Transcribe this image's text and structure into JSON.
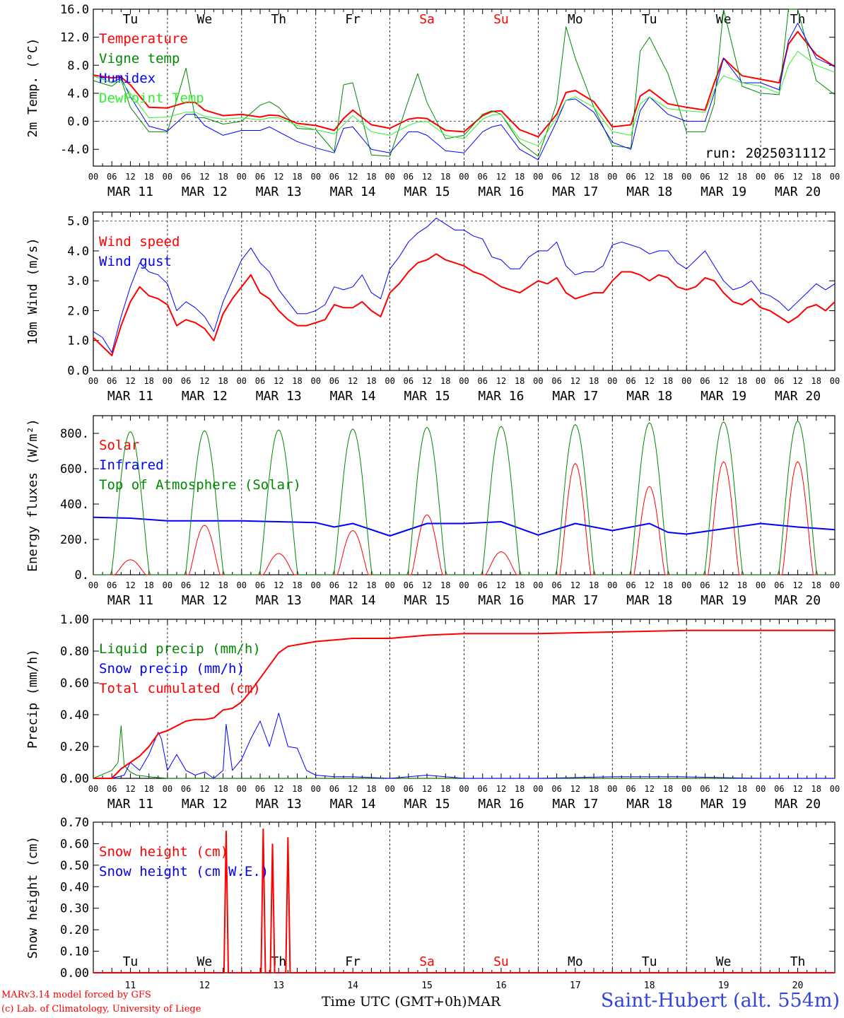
{
  "x_ticks": [
    "00",
    "06",
    "12",
    "18"
  ],
  "dates": [
    "MAR 11",
    "MAR 12",
    "MAR 13",
    "MAR 14",
    "MAR 15",
    "MAR 16",
    "MAR 17",
    "MAR 18",
    "MAR 19",
    "MAR 20"
  ],
  "weekdays": [
    "Tu",
    "We",
    "Th",
    "Fr",
    "Sa",
    "Su",
    "Mo",
    "Tu",
    "We",
    "Th"
  ],
  "weekday_colors": [
    "#000000",
    "#000000",
    "#000000",
    "#000000",
    "#ff0000",
    "#ff0000",
    "#000000",
    "#000000",
    "#000000",
    "#000000"
  ],
  "bottom_day_numbers": [
    "11",
    "12",
    "13",
    "14",
    "15",
    "16",
    "17",
    "18",
    "19",
    "20"
  ],
  "footer": {
    "model": "MARv3.14 model forced by GFS",
    "credit": "(c) Lab. of Climatology, University of Liege",
    "time_label": "Time UTC (GMT+0h)",
    "month": "MAR",
    "station": "Saint-Hubert (alt. 554m)"
  },
  "chart_data": [
    {
      "type": "line",
      "ylabel": "2m Temp. (°C)",
      "ylim": [
        -6.4,
        16.0
      ],
      "yticks": [
        "-4.0",
        "0.0",
        "4.0",
        "8.0",
        "12.0",
        "16.0"
      ],
      "ytick_values": [
        -4,
        0,
        4,
        8,
        12,
        16
      ],
      "reference_lines": [
        0
      ],
      "annotation": "run: 2025031112",
      "show_weekdays": true,
      "x_hours": [
        0,
        6,
        9,
        12,
        18,
        24,
        30,
        33,
        36,
        42,
        48,
        54,
        57,
        60,
        66,
        72,
        78,
        81,
        84,
        90,
        96,
        102,
        105,
        108,
        114,
        120,
        126,
        129,
        132,
        138,
        144,
        150,
        153,
        156,
        162,
        168,
        174,
        177,
        180,
        186,
        192,
        198,
        201,
        204,
        210,
        216,
        222,
        225,
        228,
        234,
        240
      ],
      "series": [
        {
          "name": "Temperature",
          "color": "#ff0000",
          "width": 2,
          "values": [
            6.6,
            6.2,
            6.3,
            5.2,
            2.0,
            1.9,
            2.7,
            2.7,
            1.6,
            0.8,
            1.0,
            0.6,
            0.9,
            0.8,
            -0.3,
            -0.6,
            -1.3,
            0.4,
            1.6,
            -0.5,
            -1.0,
            0.3,
            0.5,
            0.4,
            -1.3,
            -1.5,
            0.8,
            1.4,
            1.5,
            -1.2,
            -2.2,
            1.0,
            4.1,
            4.4,
            2.8,
            -0.8,
            -0.5,
            3.6,
            4.5,
            2.5,
            2.0,
            1.6,
            5.5,
            9.0,
            6.5,
            6.0,
            5.5,
            11.0,
            12.8,
            9.5,
            7.8
          ]
        },
        {
          "name": "Vigne temp",
          "color": "#008800",
          "width": 1,
          "values": [
            5.8,
            5.0,
            6.0,
            2.0,
            -1.5,
            -1.5,
            7.6,
            0.5,
            0.5,
            -0.4,
            0.0,
            2.3,
            2.8,
            2.0,
            -1.0,
            -1.2,
            -4.3,
            5.2,
            5.5,
            -4.8,
            -5.0,
            3.0,
            6.8,
            2.7,
            -2.5,
            -2.0,
            1.0,
            1.5,
            1.0,
            -3.0,
            -5.0,
            2.5,
            13.5,
            9.0,
            2.0,
            -3.5,
            -3.8,
            10.0,
            12.0,
            6.8,
            -1.5,
            -1.5,
            2.5,
            16.0,
            5.0,
            4.0,
            3.8,
            16.0,
            16.0,
            5.8,
            3.8
          ]
        },
        {
          "name": "Humidex",
          "color": "#0000ff",
          "width": 1,
          "values": [
            6.5,
            5.5,
            6.2,
            3.5,
            -0.7,
            -1.4,
            1.0,
            1.0,
            -0.6,
            -2.0,
            -1.3,
            -1.3,
            -0.8,
            -1.5,
            -2.9,
            -3.8,
            -4.5,
            -1.0,
            -0.8,
            -4.0,
            -4.5,
            -1.5,
            -1.5,
            -2.0,
            -4.2,
            -4.5,
            -1.5,
            -0.8,
            -0.5,
            -4.0,
            -5.5,
            0.0,
            3.0,
            3.2,
            1.3,
            -3.0,
            -4.0,
            1.5,
            3.5,
            1.0,
            0.0,
            0.0,
            4.0,
            9.0,
            5.5,
            5.5,
            4.5,
            11.5,
            14.0,
            9.0,
            7.8
          ]
        },
        {
          "name": "DewPoint Temp",
          "color": "#33ee33",
          "width": 1,
          "values": [
            6.5,
            5.5,
            5.8,
            4.0,
            0.5,
            0.6,
            1.3,
            1.3,
            0.7,
            0.3,
            0.5,
            0.2,
            0.5,
            0.5,
            -0.6,
            -1.2,
            -1.8,
            -0.5,
            0.8,
            -1.5,
            -2.0,
            -0.6,
            -0.1,
            0.0,
            -2.0,
            -2.5,
            0.3,
            0.9,
            1.0,
            -2.5,
            -3.5,
            0.5,
            3.0,
            3.5,
            2.0,
            -1.5,
            -2.0,
            2.5,
            3.5,
            1.8,
            1.5,
            1.3,
            4.5,
            6.5,
            5.5,
            5.0,
            4.0,
            8.0,
            10.0,
            8.0,
            7.0
          ]
        }
      ]
    },
    {
      "type": "line",
      "ylabel": "10m Wind (m/s)",
      "ylim": [
        0.0,
        5.3
      ],
      "yticks": [
        "0.0",
        "1.0",
        "2.0",
        "3.0",
        "4.0",
        "5.0"
      ],
      "ytick_values": [
        0,
        1,
        2,
        3,
        4,
        5
      ],
      "reference_lines": [
        5
      ],
      "show_weekdays": false,
      "x_hours": [
        0,
        3,
        6,
        9,
        12,
        15,
        18,
        21,
        24,
        27,
        30,
        33,
        36,
        39,
        42,
        45,
        48,
        51,
        54,
        57,
        60,
        63,
        66,
        69,
        72,
        75,
        78,
        81,
        84,
        87,
        90,
        93,
        96,
        99,
        102,
        105,
        108,
        111,
        114,
        117,
        120,
        123,
        126,
        129,
        132,
        135,
        138,
        141,
        144,
        147,
        150,
        153,
        156,
        159,
        162,
        165,
        168,
        171,
        174,
        177,
        180,
        183,
        186,
        189,
        192,
        195,
        198,
        201,
        204,
        207,
        210,
        213,
        216,
        219,
        222,
        225,
        228,
        231,
        234,
        237,
        240
      ],
      "series": [
        {
          "name": "Wind speed",
          "color": "#ff0000",
          "width": 2,
          "values": [
            1.1,
            0.8,
            0.5,
            1.5,
            2.3,
            2.8,
            2.5,
            2.4,
            2.2,
            1.5,
            1.7,
            1.6,
            1.4,
            1.0,
            1.9,
            2.4,
            2.8,
            3.2,
            2.6,
            2.4,
            2.0,
            1.7,
            1.5,
            1.5,
            1.6,
            1.7,
            2.2,
            2.1,
            2.1,
            2.3,
            2.0,
            1.8,
            2.6,
            2.9,
            3.3,
            3.6,
            3.7,
            3.9,
            3.7,
            3.6,
            3.5,
            3.3,
            3.2,
            3.0,
            2.8,
            2.7,
            2.6,
            2.8,
            3.0,
            2.9,
            3.1,
            2.6,
            2.4,
            2.5,
            2.6,
            2.6,
            3.0,
            3.3,
            3.3,
            3.2,
            3.0,
            3.2,
            3.1,
            2.8,
            2.7,
            2.8,
            3.1,
            3.0,
            2.6,
            2.3,
            2.2,
            2.4,
            2.1,
            2.0,
            1.8,
            1.6,
            1.8,
            2.1,
            2.2,
            2.0,
            2.3
          ]
        },
        {
          "name": "Wind gust",
          "color": "#0000ff",
          "width": 1,
          "values": [
            1.3,
            1.1,
            0.6,
            1.8,
            2.8,
            3.6,
            3.3,
            3.2,
            2.9,
            2.0,
            2.3,
            2.1,
            1.8,
            1.3,
            2.3,
            3.0,
            3.7,
            4.1,
            3.6,
            3.3,
            2.7,
            2.3,
            1.9,
            1.9,
            2.0,
            2.2,
            2.8,
            2.7,
            2.8,
            3.2,
            2.6,
            2.4,
            3.4,
            3.8,
            4.3,
            4.6,
            4.8,
            5.1,
            4.9,
            4.7,
            4.7,
            4.5,
            4.4,
            3.8,
            3.7,
            3.4,
            3.4,
            3.8,
            4.0,
            4.0,
            4.3,
            3.5,
            3.2,
            3.3,
            3.3,
            3.5,
            4.2,
            4.3,
            4.2,
            4.1,
            3.9,
            4.0,
            4.0,
            3.6,
            3.4,
            3.7,
            4.0,
            3.5,
            3.0,
            2.7,
            2.8,
            3.0,
            2.6,
            2.5,
            2.3,
            2.0,
            2.3,
            2.6,
            2.9,
            2.7,
            2.9
          ]
        }
      ]
    },
    {
      "type": "line",
      "ylabel": "Energy fluxes (W/m²)",
      "ylim": [
        0,
        900
      ],
      "yticks": [
        "0.",
        "200.",
        "400.",
        "600.",
        "800."
      ],
      "ytick_values": [
        0,
        200,
        400,
        600,
        800
      ],
      "show_weekdays": false,
      "series": [
        {
          "name": "Solar",
          "color": "#ff0000",
          "width": 1,
          "day_peaks": [
            85,
            280,
            120,
            250,
            340,
            130,
            630,
            500,
            640,
            640
          ]
        },
        {
          "name": "Infrared",
          "color": "#0000ff",
          "width": 2,
          "x_hours": [
            0,
            12,
            24,
            36,
            48,
            60,
            72,
            78,
            84,
            96,
            108,
            120,
            132,
            144,
            156,
            168,
            180,
            186,
            192,
            204,
            216,
            228,
            240
          ],
          "values": [
            325,
            320,
            305,
            305,
            305,
            300,
            295,
            270,
            290,
            220,
            290,
            290,
            300,
            225,
            290,
            250,
            290,
            240,
            230,
            260,
            290,
            270,
            255
          ]
        },
        {
          "name": "Top of Atmosphere (Solar)",
          "color": "#008800",
          "width": 1,
          "day_peaks": [
            810,
            815,
            820,
            825,
            835,
            840,
            850,
            860,
            865,
            870
          ]
        }
      ]
    },
    {
      "type": "line",
      "ylabel": "Precip (mm/h)",
      "ylim": [
        0.0,
        1.0
      ],
      "yticks": [
        "0.00",
        "0.20",
        "0.40",
        "0.60",
        "0.80",
        "1.00"
      ],
      "ytick_values": [
        0,
        0.2,
        0.4,
        0.6,
        0.8,
        1.0
      ],
      "show_weekdays": false,
      "series": [
        {
          "name": "Liquid precip (mm/h)",
          "color": "#008800",
          "width": 1,
          "x_hours": [
            0,
            6,
            8,
            9,
            10,
            12,
            14,
            18,
            24,
            30,
            240
          ],
          "values": [
            0,
            0.05,
            0.1,
            0.33,
            0.08,
            0.04,
            0.02,
            0.01,
            0.0,
            0.0,
            0.0
          ]
        },
        {
          "name": "Snow precip (mm/h)",
          "color": "#0000ff",
          "width": 1,
          "x_hours": [
            0,
            6,
            10,
            12,
            15,
            18,
            21,
            22,
            24,
            27,
            30,
            33,
            36,
            39,
            42,
            43,
            45,
            48,
            51,
            54,
            57,
            60,
            63,
            66,
            69,
            72,
            78,
            84,
            96,
            108,
            120,
            144,
            168,
            190,
            216,
            240
          ],
          "values": [
            0,
            0,
            0.02,
            0.1,
            0.05,
            0.15,
            0.29,
            0.25,
            0.05,
            0.15,
            0.05,
            0.02,
            0.04,
            0.0,
            0.05,
            0.34,
            0.05,
            0.12,
            0.25,
            0.36,
            0.2,
            0.41,
            0.2,
            0.19,
            0.05,
            0.02,
            0.01,
            0.01,
            0.0,
            0.02,
            0.0,
            0.0,
            0.01,
            0.01,
            0.0,
            0.0
          ]
        },
        {
          "name": "Total cumulated (cm)",
          "color": "#ff0000",
          "width": 2,
          "x_hours": [
            0,
            6,
            9,
            12,
            15,
            18,
            21,
            24,
            27,
            30,
            33,
            36,
            39,
            42,
            45,
            48,
            51,
            54,
            57,
            60,
            63,
            66,
            72,
            78,
            84,
            96,
            108,
            120,
            132,
            144,
            168,
            192,
            216,
            240
          ],
          "values": [
            0,
            0,
            0.06,
            0.1,
            0.14,
            0.2,
            0.28,
            0.3,
            0.33,
            0.36,
            0.37,
            0.37,
            0.38,
            0.43,
            0.44,
            0.48,
            0.55,
            0.63,
            0.71,
            0.79,
            0.83,
            0.84,
            0.86,
            0.87,
            0.88,
            0.88,
            0.9,
            0.91,
            0.91,
            0.91,
            0.92,
            0.93,
            0.93,
            0.93
          ]
        }
      ]
    },
    {
      "type": "line",
      "ylabel": "Snow height (cm)",
      "ylim": [
        0.0,
        0.7
      ],
      "yticks": [
        "0.00",
        "0.10",
        "0.20",
        "0.30",
        "0.40",
        "0.50",
        "0.60",
        "0.70"
      ],
      "ytick_values": [
        0,
        0.1,
        0.2,
        0.3,
        0.4,
        0.5,
        0.6,
        0.7
      ],
      "show_weekdays_bottom": true,
      "series": [
        {
          "name": "Snow height (cm)",
          "color": "#ff0000",
          "width": 2,
          "spikes": [
            {
              "x": 43,
              "y": 0.66
            },
            {
              "x": 55,
              "y": 0.67
            },
            {
              "x": 58,
              "y": 0.6
            },
            {
              "x": 63,
              "y": 0.63
            }
          ]
        },
        {
          "name": "Snow height (cm W.E.)",
          "color": "#0000ff",
          "width": 1,
          "spikes": []
        }
      ]
    }
  ]
}
